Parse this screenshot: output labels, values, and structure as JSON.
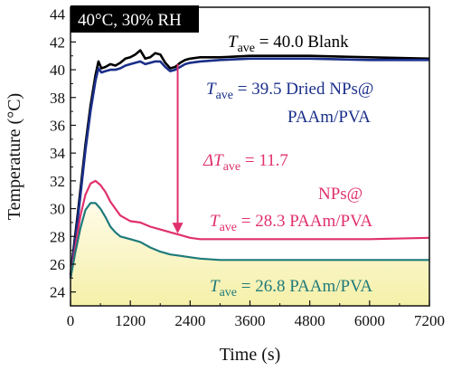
{
  "chart_data": {
    "type": "line",
    "xlabel": "Time (s)",
    "ylabel": "Temperature (°C)",
    "xlim": [
      0,
      7200
    ],
    "ylim": [
      23,
      44.5
    ],
    "x_ticks": [
      0,
      1200,
      2400,
      3600,
      4800,
      6000,
      7200
    ],
    "y_ticks": [
      24,
      26,
      28,
      30,
      32,
      34,
      36,
      38,
      40,
      42,
      44
    ],
    "condition_label": "40°C, 30% RH",
    "series": [
      {
        "name": "Blank",
        "color": "#000000",
        "x": [
          0,
          150,
          300,
          400,
          500,
          560,
          620,
          700,
          800,
          900,
          1000,
          1100,
          1200,
          1300,
          1400,
          1500,
          1600,
          1700,
          1800,
          1900,
          2000,
          2100,
          2200,
          2300,
          2400,
          2600,
          3000,
          3600,
          4800,
          6000,
          7200
        ],
        "y": [
          25.2,
          29.8,
          34.6,
          37.4,
          39.6,
          40.6,
          40.1,
          40.2,
          40.4,
          40.3,
          40.5,
          40.8,
          40.9,
          41.1,
          41.4,
          40.8,
          40.9,
          41.2,
          41.1,
          40.5,
          40.1,
          40.2,
          40.5,
          40.7,
          40.8,
          40.9,
          40.9,
          41.0,
          41.0,
          40.9,
          40.8
        ]
      },
      {
        "name": "Dried NPs@ PAAm/PVA",
        "color": "#1a2f8a",
        "x": [
          0,
          150,
          300,
          400,
          500,
          560,
          620,
          700,
          800,
          900,
          1000,
          1100,
          1200,
          1300,
          1400,
          1500,
          1600,
          1700,
          1800,
          1900,
          2000,
          2100,
          2200,
          2300,
          2400,
          2600,
          3000,
          3600,
          4800,
          6000,
          7200
        ],
        "y": [
          25.0,
          29.4,
          34.2,
          37.0,
          39.2,
          40.1,
          39.8,
          39.9,
          40.0,
          40.0,
          40.1,
          40.3,
          40.4,
          40.5,
          40.6,
          40.4,
          40.5,
          40.6,
          40.6,
          40.2,
          39.9,
          40.0,
          40.2,
          40.4,
          40.5,
          40.6,
          40.7,
          40.8,
          40.8,
          40.7,
          40.7
        ]
      },
      {
        "name": "NPs@ PAAm/PVA",
        "color": "#e0306e",
        "x": [
          0,
          100,
          200,
          300,
          400,
          500,
          600,
          700,
          800,
          900,
          1000,
          1200,
          1400,
          1600,
          1800,
          2000,
          2200,
          2400,
          2600,
          3000,
          3600,
          4800,
          6000,
          7200
        ],
        "y": [
          25.0,
          27.3,
          29.5,
          31.0,
          31.8,
          32.0,
          31.7,
          31.2,
          30.5,
          30.0,
          29.5,
          29.1,
          29.0,
          28.7,
          28.5,
          28.3,
          28.1,
          27.9,
          27.8,
          27.8,
          27.8,
          27.8,
          27.8,
          27.9
        ]
      },
      {
        "name": "PAAm/PVA",
        "color": "#1f7a7a",
        "x": [
          0,
          100,
          200,
          300,
          400,
          500,
          600,
          700,
          800,
          900,
          1000,
          1200,
          1400,
          1600,
          1800,
          2000,
          2200,
          2400,
          2600,
          3000,
          3600,
          4800,
          6000,
          7200
        ],
        "y": [
          25.0,
          26.9,
          28.6,
          29.9,
          30.4,
          30.4,
          30.0,
          29.4,
          28.7,
          28.3,
          28.0,
          27.8,
          27.6,
          27.2,
          26.9,
          26.7,
          26.6,
          26.5,
          26.4,
          26.3,
          26.3,
          26.3,
          26.3,
          26.3
        ]
      }
    ],
    "annotations": [
      {
        "id": "blank",
        "prefix": "T",
        "sub": "ave",
        "value": " = 40.0",
        "label": "Blank",
        "color": "#000000"
      },
      {
        "id": "dried",
        "prefix": "T",
        "sub": "ave",
        "value": " = 39.5",
        "label": "Dried NPs@",
        "label2": "PAAm/PVA",
        "color": "#1a2f8a"
      },
      {
        "id": "delta",
        "prefix": "ΔT",
        "sub": "ave",
        "value": " = 11.7",
        "color": "#e0306e"
      },
      {
        "id": "nps",
        "prefix": "T",
        "sub": "ave",
        "value": " = 28.3",
        "label_top": "NPs@",
        "label": "PAAm/PVA",
        "color": "#e0306e"
      },
      {
        "id": "paam",
        "prefix": "T",
        "sub": "ave",
        "value": " = 26.8",
        "label": " PAAm/PVA",
        "color": "#1f7a7a"
      }
    ],
    "arrow": {
      "x": 2150,
      "y_from": 40.4,
      "y_to": 28.2,
      "color": "#e0306e"
    },
    "legend": "none",
    "grid": false
  }
}
